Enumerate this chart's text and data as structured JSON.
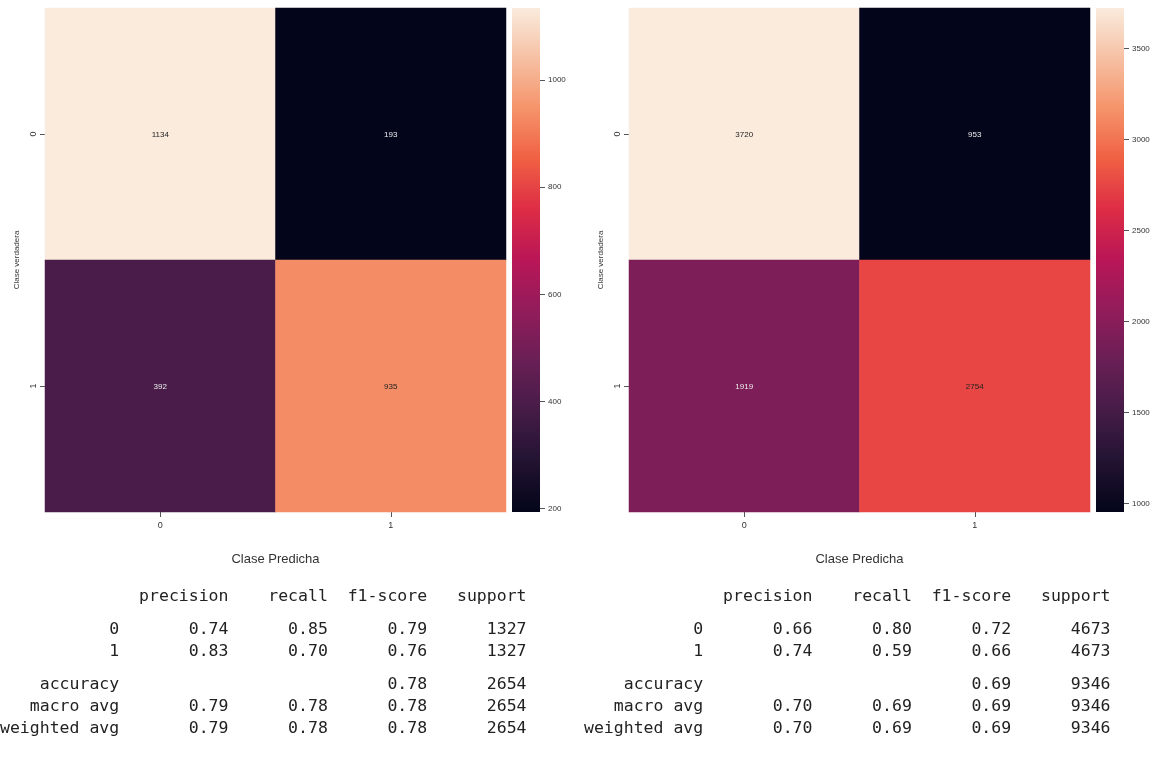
{
  "chart_data": [
    {
      "type": "heatmap",
      "xlabel": "Clase Predicha",
      "ylabel": "Clase verdadera",
      "categories": [
        "0",
        "1"
      ],
      "y_categories": [
        "0",
        "1"
      ],
      "cells": [
        [
          1134,
          193
        ],
        [
          392,
          935
        ]
      ],
      "data_labels": true,
      "clim": [
        193,
        1134
      ],
      "cticks": [
        200,
        400,
        600,
        800,
        1000
      ],
      "annotations": [
        "              precision    recall  f1-score   support",
        "           0       0.74      0.85      0.79      1327",
        "           1       0.83      0.70      0.76      1327",
        "    accuracy                           0.78      2654",
        "   macro avg       0.79      0.78      0.78      2654",
        "weighted avg       0.79      0.78      0.78      2654"
      ]
    },
    {
      "type": "heatmap",
      "xlabel": "Clase Predicha",
      "ylabel": "Clase verdadera",
      "categories": [
        "0",
        "1"
      ],
      "y_categories": [
        "0",
        "1"
      ],
      "cells": [
        [
          3720,
          953
        ],
        [
          1919,
          2754
        ]
      ],
      "data_labels": true,
      "clim": [
        953,
        3720
      ],
      "cticks": [
        1000,
        1500,
        2000,
        2500,
        3000,
        3500
      ],
      "annotations": [
        "              precision    recall  f1-score   support",
        "           0       0.66      0.80      0.72      4673",
        "           1       0.74      0.59      0.66      4673",
        "    accuracy                           0.69      9346",
        "   macro avg       0.70      0.69      0.69      9346",
        "weighted avg       0.70      0.69      0.69      9346"
      ]
    }
  ]
}
